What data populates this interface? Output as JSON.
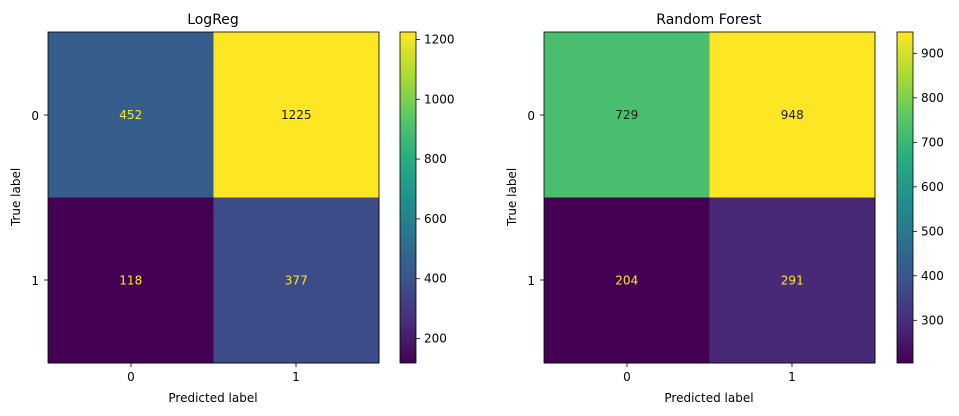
{
  "chart_data": [
    {
      "type": "heatmap",
      "title": "LogReg",
      "xlabel": "Predicted label",
      "ylabel": "True label",
      "x_categories": [
        "0",
        "1"
      ],
      "y_categories": [
        "0",
        "1"
      ],
      "values": [
        [
          452,
          1225
        ],
        [
          118,
          377
        ]
      ],
      "colormap": "viridis",
      "colorbar": {
        "min": 118,
        "max": 1225,
        "ticks": [
          200,
          400,
          600,
          800,
          1000,
          1200
        ],
        "tick_labels": [
          "200",
          "400",
          "600",
          "800",
          "1000",
          "1200"
        ]
      },
      "grid": false
    },
    {
      "type": "heatmap",
      "title": "Random Forest",
      "xlabel": "Predicted label",
      "ylabel": "True label",
      "x_categories": [
        "0",
        "1"
      ],
      "y_categories": [
        "0",
        "1"
      ],
      "values": [
        [
          729,
          948
        ],
        [
          204,
          291
        ]
      ],
      "colormap": "viridis",
      "colorbar": {
        "min": 204,
        "max": 948,
        "ticks": [
          300,
          400,
          500,
          600,
          700,
          800,
          900
        ],
        "tick_labels": [
          "300",
          "400",
          "500",
          "600",
          "700",
          "800",
          "900"
        ]
      },
      "grid": false
    }
  ]
}
